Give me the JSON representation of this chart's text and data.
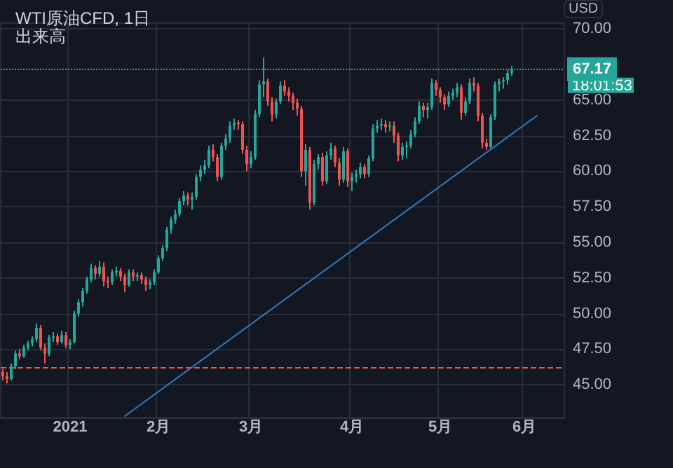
{
  "chart_data": {
    "type": "candlestick",
    "title": "WTI原油CFD, 1日",
    "subtitle": "出来高",
    "ylabel": "USD",
    "categories": [
      null,
      null,
      null,
      null,
      null,
      null,
      null,
      null,
      null,
      null,
      null,
      null,
      null,
      null,
      null,
      null,
      "2021",
      null,
      null,
      null,
      null,
      null,
      null,
      null,
      null,
      null,
      null,
      null,
      null,
      null,
      null,
      null,
      null,
      null,
      null,
      null,
      null,
      "2月",
      null,
      null,
      null,
      null,
      null,
      null,
      null,
      null,
      null,
      null,
      null,
      null,
      null,
      null,
      null,
      null,
      null,
      null,
      null,
      null,
      null,
      "3月",
      null,
      null,
      null,
      null,
      null,
      null,
      null,
      null,
      null,
      null,
      null,
      null,
      null,
      null,
      null,
      null,
      null,
      null,
      null,
      null,
      null,
      null,
      null,
      "4月",
      null,
      null,
      null,
      null,
      null,
      null,
      null,
      null,
      null,
      null,
      null,
      null,
      null,
      null,
      null,
      null,
      null,
      null,
      null,
      null,
      "5月",
      null,
      null,
      null,
      null,
      null,
      null,
      null,
      null,
      null,
      null,
      null,
      null,
      null,
      null,
      null,
      null,
      null,
      null,
      null,
      "6月",
      null,
      null,
      null,
      null,
      null,
      null,
      null,
      null,
      null
    ],
    "ohlc": [
      [
        45.9,
        46.1,
        45.3,
        45.6
      ],
      [
        45.6,
        45.9,
        45.1,
        45.4
      ],
      [
        45.4,
        46.5,
        45.3,
        46.3
      ],
      [
        46.3,
        47.4,
        46.1,
        47.2
      ],
      [
        47.2,
        47.5,
        46.8,
        47.0
      ],
      [
        47.0,
        47.8,
        46.9,
        47.6
      ],
      [
        47.6,
        48.1,
        47.4,
        47.9
      ],
      [
        47.9,
        48.4,
        47.7,
        48.2
      ],
      [
        48.2,
        49.3,
        48.0,
        49.0
      ],
      [
        49.0,
        49.2,
        47.4,
        47.6
      ],
      [
        47.6,
        47.9,
        46.5,
        47.2
      ],
      [
        47.2,
        48.5,
        47.0,
        48.3
      ],
      [
        48.3,
        48.7,
        48.0,
        48.4
      ],
      [
        48.4,
        48.6,
        47.8,
        48.0
      ],
      [
        48.0,
        48.8,
        47.9,
        48.5
      ],
      [
        48.5,
        48.7,
        47.6,
        47.8
      ],
      [
        47.8,
        48.2,
        47.5,
        48.0
      ],
      [
        48.0,
        50.2,
        47.9,
        50.0
      ],
      [
        50.0,
        51.0,
        49.8,
        50.8
      ],
      [
        50.8,
        51.8,
        50.5,
        51.6
      ],
      [
        51.6,
        52.6,
        51.4,
        52.4
      ],
      [
        52.4,
        53.5,
        52.2,
        53.2
      ],
      [
        53.2,
        53.4,
        52.4,
        52.8
      ],
      [
        52.8,
        53.7,
        52.6,
        53.3
      ],
      [
        53.3,
        53.6,
        51.9,
        52.3
      ],
      [
        52.3,
        52.6,
        51.8,
        52.2
      ],
      [
        52.2,
        53.1,
        52.0,
        52.9
      ],
      [
        52.9,
        53.3,
        52.6,
        53.0
      ],
      [
        53.0,
        53.2,
        52.3,
        52.6
      ],
      [
        52.6,
        52.8,
        51.5,
        52.0
      ],
      [
        52.0,
        53.1,
        51.9,
        52.9
      ],
      [
        52.9,
        53.1,
        52.3,
        52.6
      ],
      [
        52.6,
        52.9,
        52.3,
        52.7
      ],
      [
        52.7,
        52.9,
        52.1,
        52.4
      ],
      [
        52.4,
        52.6,
        51.6,
        52.0
      ],
      [
        52.0,
        52.4,
        51.7,
        52.2
      ],
      [
        52.2,
        53.1,
        52.0,
        52.9
      ],
      [
        52.9,
        54.1,
        52.8,
        53.9
      ],
      [
        53.9,
        54.8,
        53.7,
        54.6
      ],
      [
        54.6,
        56.1,
        54.4,
        55.9
      ],
      [
        55.9,
        56.8,
        55.6,
        56.6
      ],
      [
        56.6,
        57.3,
        56.3,
        57.0
      ],
      [
        57.0,
        58.1,
        56.8,
        57.9
      ],
      [
        57.9,
        58.6,
        57.6,
        58.3
      ],
      [
        58.3,
        58.5,
        57.6,
        58.0
      ],
      [
        58.0,
        58.5,
        57.3,
        58.2
      ],
      [
        58.2,
        59.8,
        58.0,
        59.6
      ],
      [
        59.6,
        60.4,
        59.3,
        60.1
      ],
      [
        60.1,
        60.8,
        59.8,
        60.4
      ],
      [
        60.4,
        61.8,
        60.2,
        61.5
      ],
      [
        61.5,
        61.9,
        60.7,
        61.0
      ],
      [
        61.0,
        61.2,
        59.3,
        59.6
      ],
      [
        59.6,
        62.0,
        59.4,
        61.8
      ],
      [
        61.8,
        62.6,
        61.5,
        62.3
      ],
      [
        62.3,
        63.5,
        62.0,
        63.2
      ],
      [
        63.2,
        63.7,
        62.9,
        63.4
      ],
      [
        63.4,
        63.6,
        62.9,
        63.3
      ],
      [
        63.3,
        63.5,
        61.2,
        61.5
      ],
      [
        61.5,
        61.8,
        60.0,
        60.5
      ],
      [
        60.5,
        61.4,
        60.2,
        61.0
      ],
      [
        61.0,
        64.3,
        60.8,
        64.0
      ],
      [
        64.0,
        66.4,
        63.8,
        66.1
      ],
      [
        66.1,
        67.98,
        65.2,
        66.3
      ],
      [
        66.3,
        66.5,
        64.6,
        64.9
      ],
      [
        64.9,
        65.2,
        63.5,
        64.0
      ],
      [
        64.0,
        65.1,
        63.7,
        64.9
      ],
      [
        64.9,
        66.3,
        64.7,
        66.0
      ],
      [
        66.0,
        66.4,
        65.3,
        65.6
      ],
      [
        65.6,
        65.9,
        64.9,
        65.3
      ],
      [
        65.3,
        65.5,
        64.3,
        64.8
      ],
      [
        64.8,
        65.1,
        63.9,
        64.4
      ],
      [
        64.4,
        64.6,
        59.6,
        60.0
      ],
      [
        60.0,
        61.9,
        59.0,
        61.5
      ],
      [
        61.5,
        61.7,
        57.3,
        57.8
      ],
      [
        57.8,
        60.8,
        57.6,
        60.5
      ],
      [
        60.5,
        61.2,
        60.1,
        61.0
      ],
      [
        61.0,
        61.3,
        59.0,
        59.3
      ],
      [
        59.3,
        61.4,
        59.1,
        61.1
      ],
      [
        61.1,
        62.0,
        60.8,
        61.6
      ],
      [
        61.6,
        61.8,
        60.3,
        60.6
      ],
      [
        60.6,
        60.9,
        59.0,
        59.4
      ],
      [
        59.4,
        61.7,
        59.2,
        61.4
      ],
      [
        61.4,
        61.6,
        58.9,
        59.3
      ],
      [
        59.3,
        59.9,
        58.6,
        59.6
      ],
      [
        59.6,
        60.1,
        59.2,
        59.8
      ],
      [
        59.8,
        60.6,
        59.5,
        60.3
      ],
      [
        60.3,
        60.5,
        59.5,
        59.8
      ],
      [
        59.8,
        61.1,
        59.6,
        60.9
      ],
      [
        60.9,
        63.3,
        60.7,
        63.0
      ],
      [
        63.0,
        63.6,
        62.7,
        63.2
      ],
      [
        63.2,
        63.7,
        62.9,
        63.3
      ],
      [
        63.3,
        63.6,
        62.7,
        63.1
      ],
      [
        63.1,
        63.5,
        62.8,
        63.2
      ],
      [
        63.2,
        63.5,
        62.0,
        62.5
      ],
      [
        62.5,
        62.7,
        60.7,
        61.1
      ],
      [
        61.1,
        62.0,
        60.8,
        61.7
      ],
      [
        61.7,
        62.1,
        60.9,
        61.8
      ],
      [
        61.8,
        62.9,
        61.6,
        62.6
      ],
      [
        62.6,
        63.8,
        62.4,
        63.5
      ],
      [
        63.5,
        64.9,
        63.3,
        64.6
      ],
      [
        64.6,
        64.8,
        63.8,
        64.3
      ],
      [
        64.3,
        64.8,
        63.7,
        64.5
      ],
      [
        64.5,
        66.5,
        64.3,
        66.2
      ],
      [
        66.2,
        66.4,
        65.3,
        65.7
      ],
      [
        65.7,
        65.9,
        64.8,
        65.2
      ],
      [
        65.2,
        65.4,
        64.3,
        64.7
      ],
      [
        64.7,
        65.6,
        64.5,
        65.3
      ],
      [
        65.3,
        65.8,
        65.0,
        65.5
      ],
      [
        65.5,
        66.2,
        65.2,
        65.9
      ],
      [
        65.9,
        66.1,
        63.6,
        64.1
      ],
      [
        64.1,
        65.2,
        63.9,
        64.9
      ],
      [
        64.9,
        66.5,
        64.7,
        66.2
      ],
      [
        66.2,
        66.6,
        65.6,
        66.0
      ],
      [
        66.0,
        66.2,
        63.5,
        63.9
      ],
      [
        63.9,
        64.1,
        61.6,
        62.0
      ],
      [
        62.0,
        62.3,
        61.5,
        61.7
      ],
      [
        61.7,
        64.0,
        61.6,
        63.8
      ],
      [
        63.8,
        66.3,
        63.6,
        66.1
      ],
      [
        66.1,
        66.5,
        65.6,
        66.3
      ],
      [
        66.3,
        66.6,
        65.8,
        66.4
      ],
      [
        66.4,
        67.1,
        66.1,
        66.9
      ],
      [
        66.9,
        67.4,
        66.7,
        67.17
      ],
      null,
      null,
      null,
      null,
      null,
      null,
      null,
      null,
      null,
      null,
      null,
      null
    ],
    "series": [
      {
        "type": "line",
        "color": "#2e7bbf",
        "values": [
          null,
          null,
          null,
          null,
          null,
          null,
          null,
          null,
          null,
          null,
          null,
          null,
          null,
          null,
          null,
          null,
          null,
          null,
          null,
          null,
          null,
          null,
          null,
          null,
          null,
          null,
          null,
          null,
          null,
          42.8,
          null,
          null,
          null,
          null,
          null,
          null,
          null,
          null,
          null,
          null,
          null,
          null,
          null,
          null,
          null,
          null,
          null,
          null,
          null,
          null,
          null,
          null,
          null,
          null,
          null,
          null,
          null,
          null,
          null,
          null,
          null,
          null,
          null,
          null,
          null,
          null,
          null,
          null,
          null,
          null,
          null,
          null,
          null,
          null,
          null,
          null,
          null,
          null,
          null,
          null,
          null,
          null,
          null,
          null,
          null,
          null,
          null,
          null,
          null,
          null,
          null,
          null,
          null,
          null,
          null,
          null,
          null,
          null,
          null,
          null,
          null,
          null,
          null,
          null,
          null,
          null,
          null,
          null,
          null,
          null,
          null,
          null,
          null,
          null,
          null,
          null,
          null,
          null,
          null,
          null,
          null,
          null,
          null,
          null,
          null,
          null,
          null,
          63.9,
          null,
          null,
          null,
          null,
          null,
          null
        ]
      }
    ],
    "ylim": [
      42.7,
      70.4
    ],
    "yticks": [
      {
        "value": 45,
        "label": "45.00"
      },
      {
        "value": 47.5,
        "label": "47.50"
      },
      {
        "value": 50,
        "label": "50.00"
      },
      {
        "value": 52.5,
        "label": "52.50"
      },
      {
        "value": 55,
        "label": "55.00"
      },
      {
        "value": 57.5,
        "label": "57.50"
      },
      {
        "value": 60,
        "label": "60.00"
      },
      {
        "value": 62.5,
        "label": "62.50"
      },
      {
        "value": 65,
        "label": "65.00"
      },
      {
        "value": 70,
        "label": "70.00"
      }
    ],
    "ref_lines": [
      {
        "axis": "y",
        "value": 67.17,
        "label": "67.17",
        "color": "#26a69a",
        "line_style": "dotted"
      },
      {
        "axis": "y",
        "value": 46.24,
        "color": "#ef5350",
        "line_style": "dashed"
      }
    ],
    "annotations": [
      "18:01:53"
    ],
    "grid": true
  }
}
